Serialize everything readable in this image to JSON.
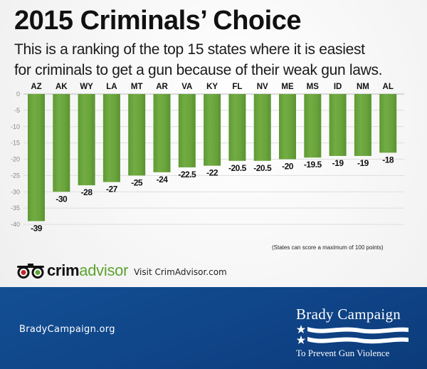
{
  "header": {
    "title": "2015 Criminals’ Choice",
    "subtitle_line1": "This is a ranking of the top 15 states where it is easiest",
    "subtitle_line2": "for criminals to get a gun because of their weak gun laws."
  },
  "chart_data": {
    "type": "bar",
    "title": "2015 Criminals’ Choice",
    "xlabel": "",
    "ylabel": "",
    "categories": [
      "AZ",
      "AK",
      "WY",
      "LA",
      "MT",
      "AR",
      "VA",
      "KY",
      "FL",
      "NV",
      "ME",
      "MS",
      "ID",
      "NM",
      "AL"
    ],
    "values": [
      -39,
      -30,
      -28,
      -27,
      -25,
      -24,
      -22.5,
      -22,
      -20.5,
      -20.5,
      -20,
      -19.5,
      -19,
      -19,
      -18
    ],
    "data_labels": [
      "-39",
      "-30",
      "-28",
      "-27",
      "-25",
      "-24",
      "-22.5",
      "-22",
      "-20.5",
      "-20.5",
      "-20",
      "-19.5",
      "-19",
      "-19",
      "-18"
    ],
    "ylim": [
      -40,
      0
    ],
    "yticks": [
      0,
      -5,
      -10,
      -15,
      -20,
      -25,
      -30,
      -35,
      -40
    ],
    "ytick_labels": [
      "0",
      "-5",
      "-10",
      "-15",
      "-20",
      "-25",
      "-30",
      "-35",
      "-40"
    ],
    "category_position": "top",
    "grid": true,
    "bar_color": "#6aa33c",
    "note": "(States can score a maximum of 100 points)"
  },
  "crimadvisor": {
    "brand_part1": "crim",
    "brand_part2": "advisor",
    "visit_text": "Visit CrimAdvisor.com",
    "logo_icon": "binoculars-owl-icon"
  },
  "footer": {
    "site": "BradyCampaign.org",
    "org_name": "Brady Campaign",
    "org_tagline": "To Prevent Gun Violence",
    "logo_icon": "stars-and-stripes-flag-icon",
    "background_color": "#0f4488"
  }
}
